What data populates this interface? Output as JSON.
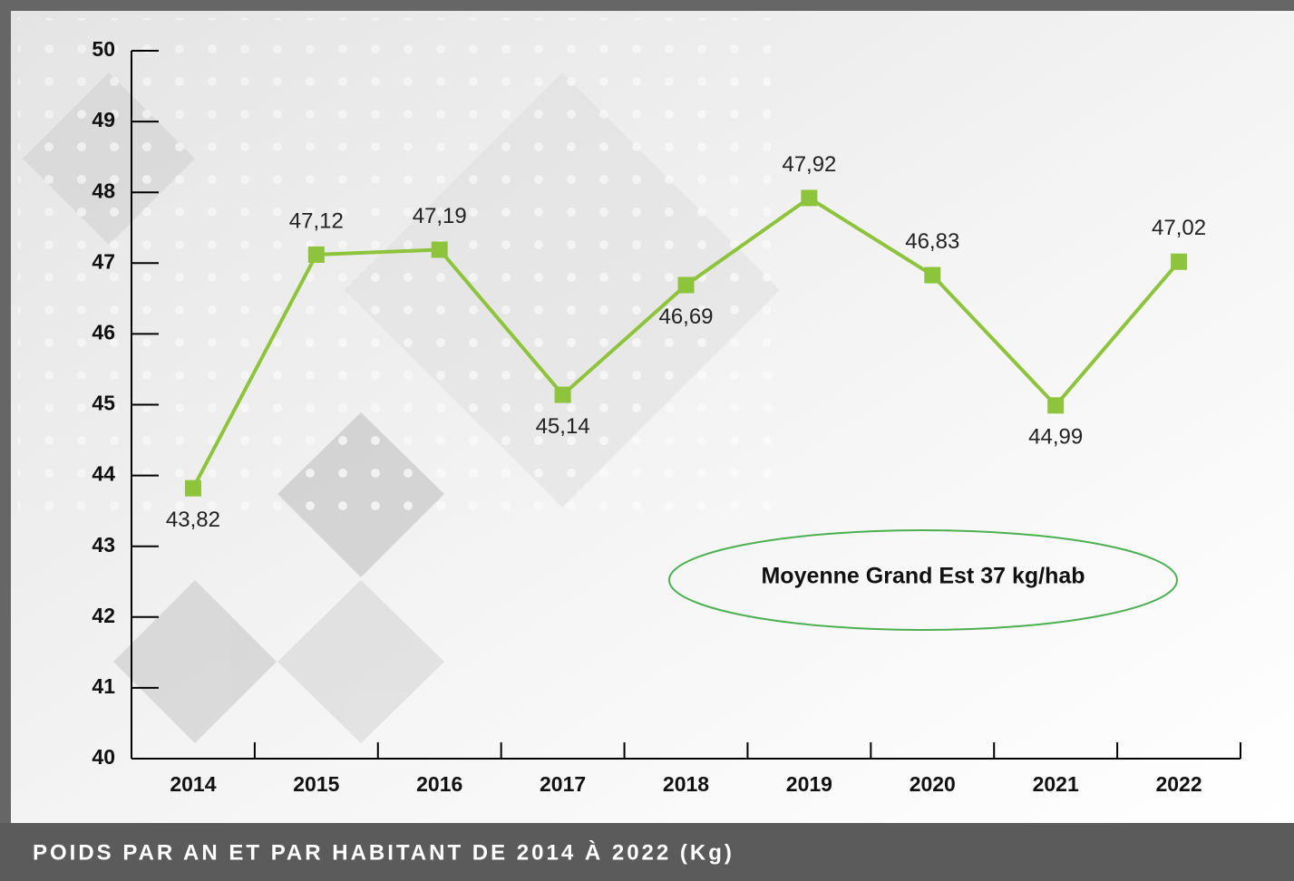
{
  "chart_data": {
    "type": "line",
    "title": "POIDS PAR AN ET PAR HABITANT DE 2014 À 2022 (Kg)",
    "annotation": "Moyenne Grand Est 37 kg/hab",
    "categories": [
      "2014",
      "2015",
      "2016",
      "2017",
      "2018",
      "2019",
      "2020",
      "2021",
      "2022"
    ],
    "values": [
      43.82,
      47.12,
      47.19,
      45.14,
      46.69,
      47.92,
      46.83,
      44.99,
      47.02
    ],
    "value_labels": [
      "43,82",
      "47,12",
      "47,19",
      "45,14",
      "46,69",
      "47,92",
      "46,83",
      "44,99",
      "47,02"
    ],
    "color": "#8dc43c",
    "ylim": [
      40,
      50
    ],
    "yticks": [
      40,
      41,
      42,
      43,
      44,
      45,
      46,
      47,
      48,
      49,
      50
    ],
    "grid": false
  }
}
